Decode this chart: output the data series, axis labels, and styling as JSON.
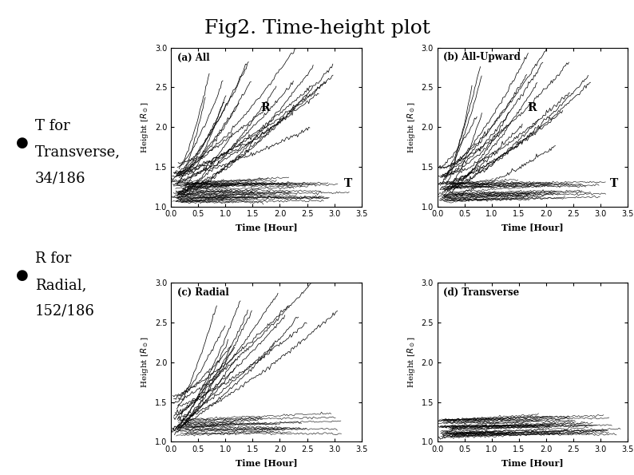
{
  "title": "Fig2. Time-height plot",
  "title_fontsize": 18,
  "subplot_labels": [
    "(a) All",
    "(b) All-Upward",
    "(c) Radial",
    "(d) Transverse"
  ],
  "xlabel": "Time [Hour]",
  "xlim": [
    0.0,
    3.5
  ],
  "ylim": [
    1.0,
    3.0
  ],
  "xticks": [
    0.0,
    0.5,
    1.0,
    1.5,
    2.0,
    2.5,
    3.0,
    3.5
  ],
  "yticks": [
    1.0,
    1.5,
    2.0,
    2.5,
    3.0
  ],
  "background_color": "#ffffff",
  "line_color": "#000000",
  "seed": 42
}
